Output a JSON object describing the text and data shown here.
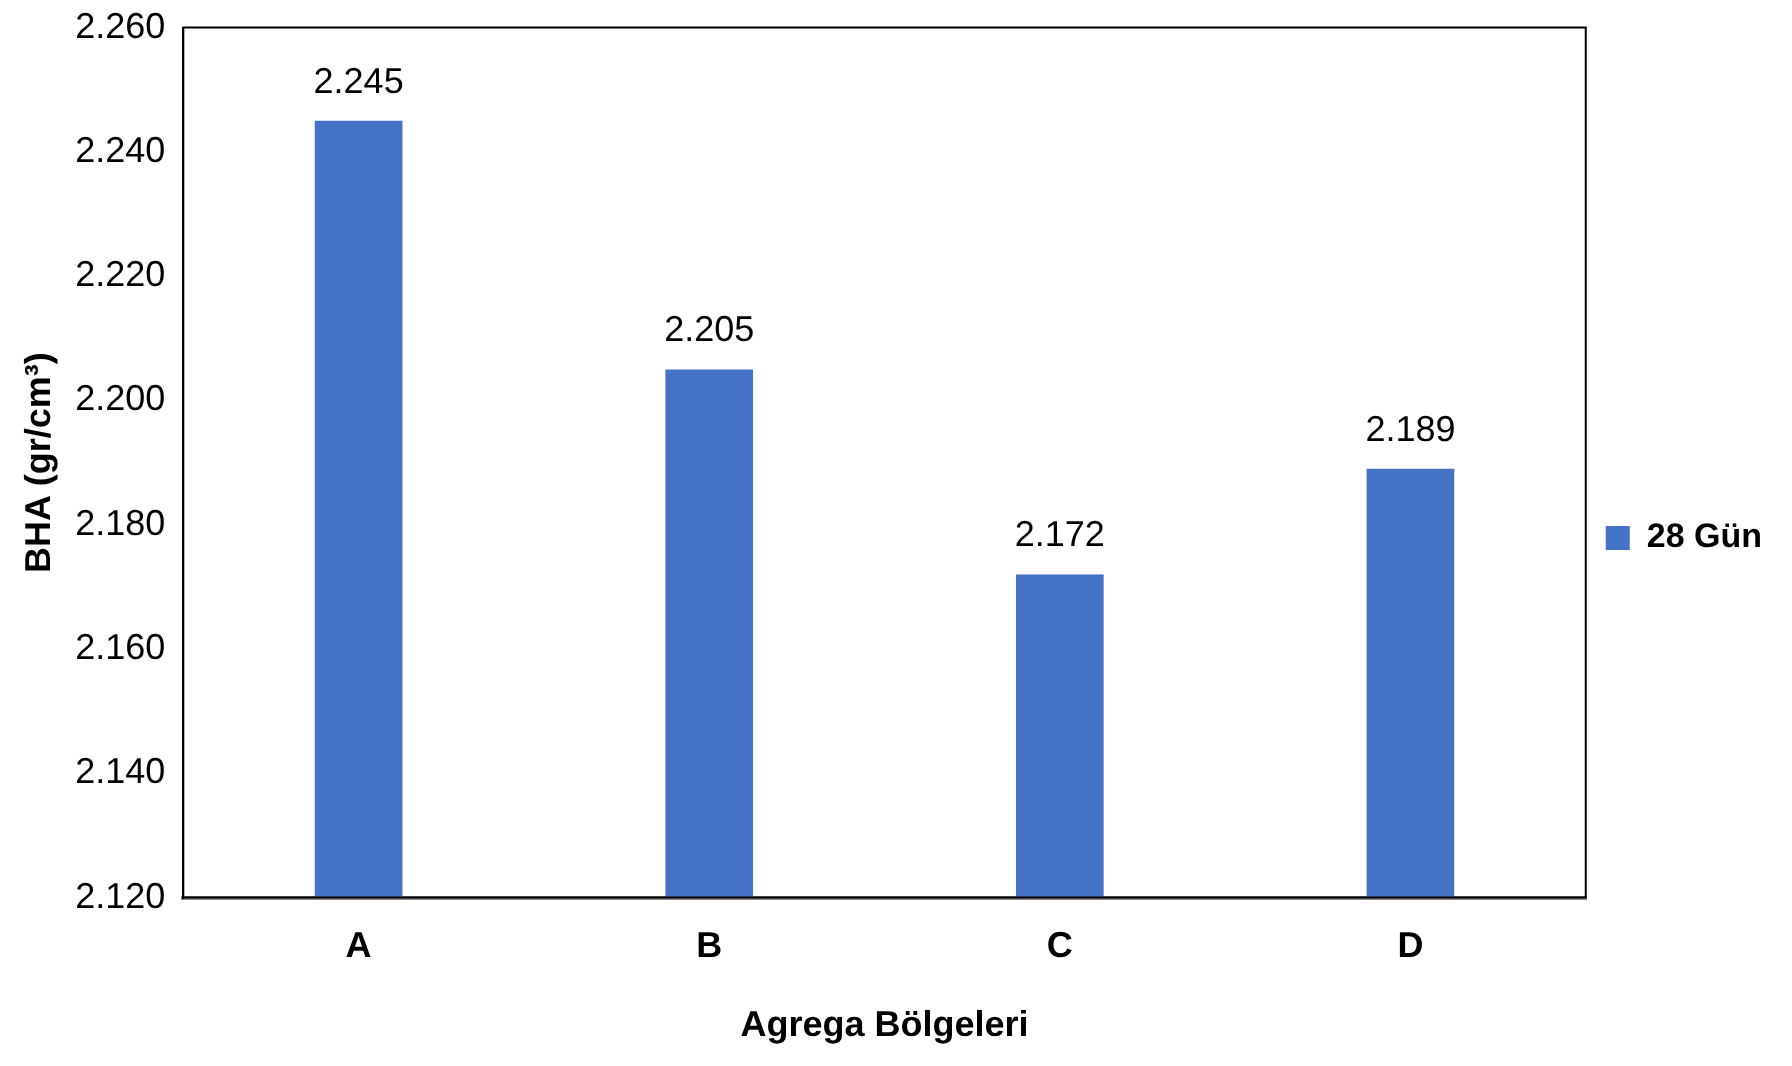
{
  "chart_data": {
    "type": "bar",
    "xlabel": "Agrega Bölgeleri",
    "ylabel": "BHA (gr/cm³)",
    "categories": [
      "A",
      "B",
      "C",
      "D"
    ],
    "series": [
      {
        "name": "28 Gün",
        "color": "#4472c4",
        "values": [
          2.245,
          2.205,
          2.172,
          2.189
        ]
      }
    ],
    "ylim": [
      2.12,
      2.26
    ],
    "yticks": [
      {
        "value": 2.12,
        "label": "2.120"
      },
      {
        "value": 2.14,
        "label": "2.140"
      },
      {
        "value": 2.16,
        "label": "2.160"
      },
      {
        "value": 2.18,
        "label": "2.180"
      },
      {
        "value": 2.2,
        "label": "2.200"
      },
      {
        "value": 2.22,
        "label": "2.220"
      },
      {
        "value": 2.24,
        "label": "2.240"
      },
      {
        "value": 2.26,
        "label": "2.260"
      }
    ],
    "grid": false,
    "legend": "right",
    "data_labels": true
  }
}
